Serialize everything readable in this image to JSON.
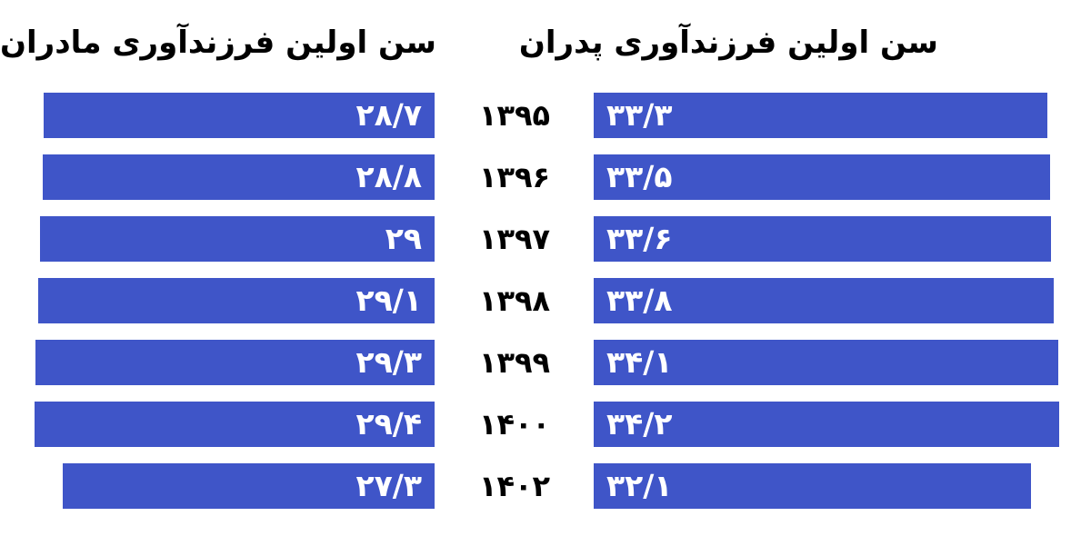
{
  "chart_data": {
    "type": "bar",
    "accent_color": "#3f55c8",
    "categories": [
      "۱۳۹۵",
      "۱۳۹۶",
      "۱۳۹۷",
      "۱۳۹۸",
      "۱۳۹۹",
      "۱۴۰۰",
      "۱۴۰۲"
    ],
    "series": [
      {
        "name": "سن اولین فرزندآوری پدران",
        "values": [
          33.3,
          33.5,
          33.6,
          33.8,
          34.1,
          34.2,
          32.1
        ],
        "labels": [
          "۳۳/۳",
          "۳۳/۵",
          "۳۳/۶",
          "۳۳/۸",
          "۳۴/۱",
          "۳۴/۲",
          "۳۲/۱"
        ]
      },
      {
        "name": "سن اولین فرزندآوری مادران",
        "values": [
          28.7,
          28.8,
          29,
          29.1,
          29.3,
          29.4,
          27.3
        ],
        "labels": [
          "۲۸/۷",
          "۲۸/۸",
          "۲۹",
          "۲۹/۱",
          "۲۹/۳",
          "۲۹/۴",
          "۲۷/۳"
        ]
      }
    ]
  }
}
